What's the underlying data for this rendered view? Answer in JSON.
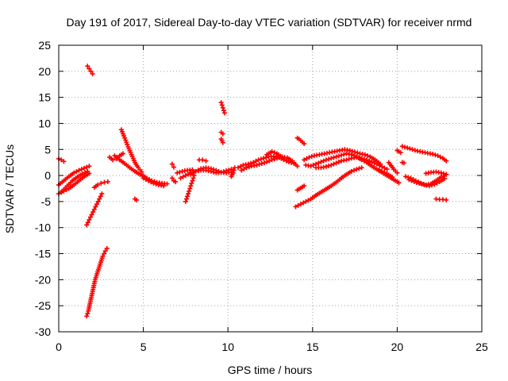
{
  "chart_data": {
    "type": "scatter",
    "title": "Day 191 of 2017, Sidereal Day-to-day VTEC variation (SDTVAR) for receiver nrmd",
    "xlabel": "GPS time / hours",
    "ylabel": "SDTVAR / TECUs",
    "xlim": [
      0,
      25
    ],
    "ylim": [
      -30,
      25
    ],
    "xticks": [
      0,
      5,
      10,
      15,
      20,
      25
    ],
    "yticks": [
      -30,
      -25,
      -20,
      -15,
      -10,
      -5,
      0,
      5,
      10,
      15,
      20,
      25
    ],
    "grid": true,
    "marker": "plus",
    "color": "#ff0000",
    "series": [
      {
        "x": [
          0.0,
          0.3,
          0.6,
          0.9,
          1.2,
          1.5,
          1.8
        ],
        "y": [
          -1.8,
          -1.0,
          -0.2,
          0.5,
          1.0,
          1.4,
          1.8
        ]
      },
      {
        "x": [
          0.0,
          0.3,
          0.6,
          0.9,
          1.2,
          1.5,
          1.8
        ],
        "y": [
          -3.5,
          -3.0,
          -2.5,
          -1.8,
          -1.0,
          -0.2,
          0.4
        ]
      },
      {
        "x": [
          0.2,
          0.5,
          0.8,
          1.1,
          1.4,
          1.7
        ],
        "y": [
          -3.0,
          -2.0,
          -1.0,
          -0.3,
          0.3,
          0.8
        ]
      },
      {
        "x": [
          0.0,
          0.15,
          0.3
        ],
        "y": [
          3.2,
          3.0,
          2.7
        ]
      },
      {
        "x": [
          1.7,
          1.8,
          1.9,
          2.0
        ],
        "y": [
          21.0,
          20.5,
          20.0,
          19.5
        ]
      },
      {
        "x": [
          1.65,
          1.75,
          1.85,
          1.95,
          2.05,
          2.15,
          2.3,
          2.45,
          2.6,
          2.75,
          2.85
        ],
        "y": [
          -27.0,
          -26.0,
          -24.5,
          -23.0,
          -21.5,
          -20.0,
          -18.5,
          -17.0,
          -15.5,
          -14.5,
          -14.0
        ]
      },
      {
        "x": [
          1.65,
          1.8,
          1.95,
          2.1,
          2.25,
          2.4,
          2.55
        ],
        "y": [
          -9.5,
          -8.5,
          -7.5,
          -6.5,
          -5.5,
          -4.5,
          -3.5
        ]
      },
      {
        "x": [
          2.1,
          2.3,
          2.5,
          2.7,
          2.9
        ],
        "y": [
          -2.3,
          -1.8,
          -1.5,
          -1.3,
          -1.2
        ]
      },
      {
        "x": [
          3.0,
          3.2,
          3.4,
          3.6,
          3.8
        ],
        "y": [
          3.5,
          3.0,
          3.2,
          3.8,
          4.2
        ]
      },
      {
        "x": [
          3.7,
          3.9,
          4.1,
          4.3,
          4.5,
          4.7,
          4.9
        ],
        "y": [
          8.8,
          7.2,
          5.5,
          4.0,
          2.5,
          1.5,
          0.7
        ]
      },
      {
        "x": [
          3.3,
          3.6,
          3.9,
          4.2,
          4.5,
          4.8,
          5.1
        ],
        "y": [
          3.8,
          3.0,
          2.3,
          1.5,
          0.8,
          0.2,
          -0.3
        ]
      },
      {
        "x": [
          4.5,
          4.6
        ],
        "y": [
          -4.5,
          -4.7
        ]
      },
      {
        "x": [
          4.9,
          5.2,
          5.5,
          5.8,
          6.1,
          6.4
        ],
        "y": [
          0.2,
          -0.5,
          -1.0,
          -1.3,
          -1.5,
          -1.6
        ]
      },
      {
        "x": [
          5.0,
          5.3,
          5.6,
          5.9,
          6.2
        ],
        "y": [
          -0.5,
          -1.0,
          -1.5,
          -1.8,
          -2.0
        ]
      },
      {
        "x": [
          6.7,
          6.8,
          6.9
        ],
        "y": [
          -0.5,
          -1.0,
          -1.2
        ]
      },
      {
        "x": [
          6.7,
          6.8
        ],
        "y": [
          2.2,
          1.6
        ]
      },
      {
        "x": [
          7.0,
          7.3,
          7.6,
          7.9
        ],
        "y": [
          0.5,
          0.8,
          1.0,
          1.1
        ]
      },
      {
        "x": [
          7.5,
          7.6,
          7.7,
          7.8,
          7.9,
          8.0
        ],
        "y": [
          -5.0,
          -4.0,
          -3.0,
          -2.0,
          -1.0,
          0.0
        ]
      },
      {
        "x": [
          7.2,
          7.5,
          7.8,
          8.1,
          8.4,
          8.7,
          9.0,
          9.3,
          9.6,
          9.9,
          10.2
        ],
        "y": [
          -0.5,
          0.0,
          0.5,
          0.8,
          1.0,
          1.0,
          0.8,
          0.5,
          0.6,
          0.9,
          1.2
        ]
      },
      {
        "x": [
          7.8,
          8.1,
          8.4,
          8.7,
          9.0,
          9.3,
          9.6,
          9.9,
          10.2
        ],
        "y": [
          0.2,
          0.8,
          1.3,
          1.5,
          1.3,
          1.0,
          0.6,
          0.5,
          0.7
        ]
      },
      {
        "x": [
          8.3,
          8.5,
          8.7
        ],
        "y": [
          3.0,
          3.0,
          2.8
        ]
      },
      {
        "x": [
          9.6,
          9.7,
          9.8
        ],
        "y": [
          14.0,
          13.0,
          12.0
        ]
      },
      {
        "x": [
          9.6,
          9.7
        ],
        "y": [
          8.3,
          8.0
        ]
      },
      {
        "x": [
          9.6,
          9.7
        ],
        "y": [
          7.0,
          6.3
        ]
      },
      {
        "x": [
          10.2,
          10.3,
          10.4
        ],
        "y": [
          -0.2,
          0.5,
          1.5
        ]
      },
      {
        "x": [
          10.6,
          10.9,
          11.2,
          11.5,
          11.8,
          12.1,
          12.4,
          12.7,
          13.0,
          13.3,
          13.6,
          13.9
        ],
        "y": [
          1.5,
          2.0,
          2.2,
          2.5,
          3.0,
          3.3,
          3.6,
          3.7,
          3.5,
          3.0,
          2.6,
          2.3
        ]
      },
      {
        "x": [
          10.8,
          11.1,
          11.4,
          11.7,
          12.0,
          12.3,
          12.6,
          12.9,
          13.2,
          13.5,
          13.8,
          14.1
        ],
        "y": [
          1.0,
          1.5,
          1.8,
          2.0,
          2.3,
          2.6,
          3.0,
          3.3,
          3.6,
          3.4,
          2.8,
          1.8
        ]
      },
      {
        "x": [
          12.3,
          12.6,
          12.9,
          13.2
        ],
        "y": [
          4.0,
          4.6,
          4.2,
          3.5
        ]
      },
      {
        "x": [
          14.1,
          14.2,
          14.3,
          14.4,
          14.5
        ],
        "y": [
          7.2,
          7.0,
          6.7,
          6.4,
          6.1
        ]
      },
      {
        "x": [
          14.1,
          14.2,
          14.3,
          14.4,
          14.5
        ],
        "y": [
          -2.8,
          -2.6,
          -2.4,
          -2.2,
          -2.0
        ]
      },
      {
        "x": [
          14.0,
          14.3,
          14.6,
          14.9,
          15.2,
          15.5,
          15.8,
          16.1,
          16.4,
          16.7,
          17.0,
          17.3,
          17.6,
          17.9
        ],
        "y": [
          -6.0,
          -5.5,
          -5.0,
          -4.5,
          -3.8,
          -3.2,
          -2.6,
          -2.0,
          -1.3,
          -0.5,
          0.2,
          0.8,
          1.2,
          1.5
        ]
      },
      {
        "x": [
          14.5,
          14.8,
          15.1,
          15.4,
          15.7,
          16.0,
          16.3,
          16.6,
          16.9,
          17.2,
          17.5,
          17.8,
          18.1,
          18.4,
          18.7,
          19.0
        ],
        "y": [
          3.0,
          3.5,
          3.8,
          4.0,
          4.2,
          4.4,
          4.6,
          4.8,
          5.0,
          4.8,
          4.5,
          4.2,
          4.0,
          3.6,
          3.0,
          2.2
        ]
      },
      {
        "x": [
          14.6,
          14.9,
          15.2,
          15.5,
          15.8,
          16.1,
          16.4,
          16.7,
          17.0,
          17.3,
          17.6,
          17.9,
          18.2,
          18.5,
          18.8,
          19.1,
          19.4,
          19.7
        ],
        "y": [
          2.0,
          1.8,
          2.2,
          2.6,
          3.0,
          3.3,
          3.6,
          3.9,
          4.2,
          4.0,
          3.6,
          3.0,
          2.5,
          1.8,
          1.2,
          0.8,
          0.3,
          -0.3
        ]
      },
      {
        "x": [
          15.2,
          15.5,
          15.8,
          16.1,
          16.4,
          16.7,
          17.0,
          17.3,
          17.6,
          17.9,
          18.2,
          18.5,
          18.8,
          19.1,
          19.4
        ],
        "y": [
          1.5,
          1.5,
          1.7,
          2.0,
          2.4,
          2.8,
          3.0,
          3.3,
          3.5,
          3.3,
          3.0,
          2.6,
          2.2,
          1.7,
          1.2
        ]
      },
      {
        "x": [
          18.9,
          19.2,
          19.5,
          19.8,
          20.1
        ],
        "y": [
          1.0,
          0.4,
          -0.2,
          -0.8,
          -1.4
        ]
      },
      {
        "x": [
          19.5,
          19.8,
          20.0
        ],
        "y": [
          2.5,
          1.2,
          0.5
        ]
      },
      {
        "x": [
          20.0,
          20.2
        ],
        "y": [
          4.8,
          4.4
        ]
      },
      {
        "x": [
          20.3,
          20.4
        ],
        "y": [
          2.5,
          2.4
        ]
      },
      {
        "x": [
          20.3,
          20.6,
          20.9,
          21.2,
          21.5,
          21.8,
          22.1,
          22.4,
          22.7,
          22.9
        ],
        "y": [
          5.6,
          5.3,
          5.0,
          4.7,
          4.5,
          4.3,
          4.1,
          3.8,
          3.3,
          2.8
        ]
      },
      {
        "x": [
          20.5,
          20.8,
          21.1,
          21.4,
          21.7,
          22.0,
          22.3,
          22.6,
          22.9
        ],
        "y": [
          -0.2,
          -0.5,
          -1.0,
          -1.5,
          -1.8,
          -1.6,
          -1.0,
          -0.3,
          0.2
        ]
      },
      {
        "x": [
          20.7,
          21.0,
          21.3,
          21.6,
          21.9,
          22.2,
          22.5,
          22.8
        ],
        "y": [
          -0.8,
          -1.2,
          -1.5,
          -1.8,
          -2.0,
          -1.7,
          -1.2,
          -0.6
        ]
      },
      {
        "x": [
          21.7,
          22.0,
          22.3,
          22.6,
          22.9
        ],
        "y": [
          0.4,
          0.6,
          0.7,
          0.5,
          0.2
        ]
      },
      {
        "x": [
          22.3,
          22.5,
          22.7,
          22.9
        ],
        "y": [
          -4.5,
          -4.6,
          -4.6,
          -4.7
        ]
      }
    ]
  }
}
